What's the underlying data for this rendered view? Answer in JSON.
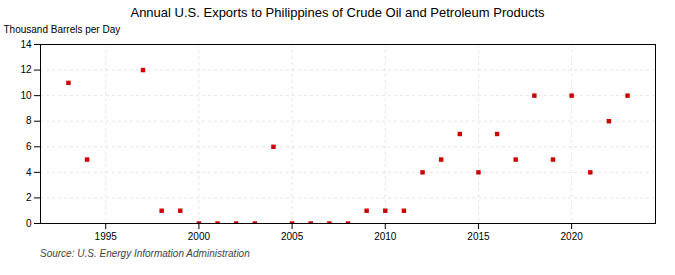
{
  "chart_data": {
    "type": "scatter",
    "title": "Annual U.S. Exports to Philippines of Crude Oil and Petroleum Products",
    "ylabel": "Thousand Barrels per Day",
    "source": "Source: U.S. Energy Information Administration",
    "x": [
      1993,
      1994,
      1997,
      1998,
      1999,
      2000,
      2001,
      2002,
      2003,
      2004,
      2005,
      2006,
      2007,
      2008,
      2009,
      2010,
      2011,
      2012,
      2013,
      2014,
      2015,
      2016,
      2017,
      2018,
      2019,
      2020,
      2021,
      2022,
      2023
    ],
    "values": [
      11,
      5,
      12,
      1,
      1,
      0,
      0,
      0,
      0,
      6,
      0,
      0,
      0,
      0,
      1,
      1,
      1,
      4,
      5,
      7,
      4,
      7,
      5,
      10,
      5,
      10,
      4,
      8,
      10
    ],
    "color": "#cc0000",
    "marker": "square",
    "xlim": [
      1991.5,
      2024.5
    ],
    "xticks": [
      1995,
      2000,
      2005,
      2010,
      2015,
      2020
    ],
    "ylim": [
      0,
      14
    ],
    "yticks": [
      0,
      2,
      4,
      6,
      8,
      10,
      12,
      14
    ],
    "grid": true
  }
}
